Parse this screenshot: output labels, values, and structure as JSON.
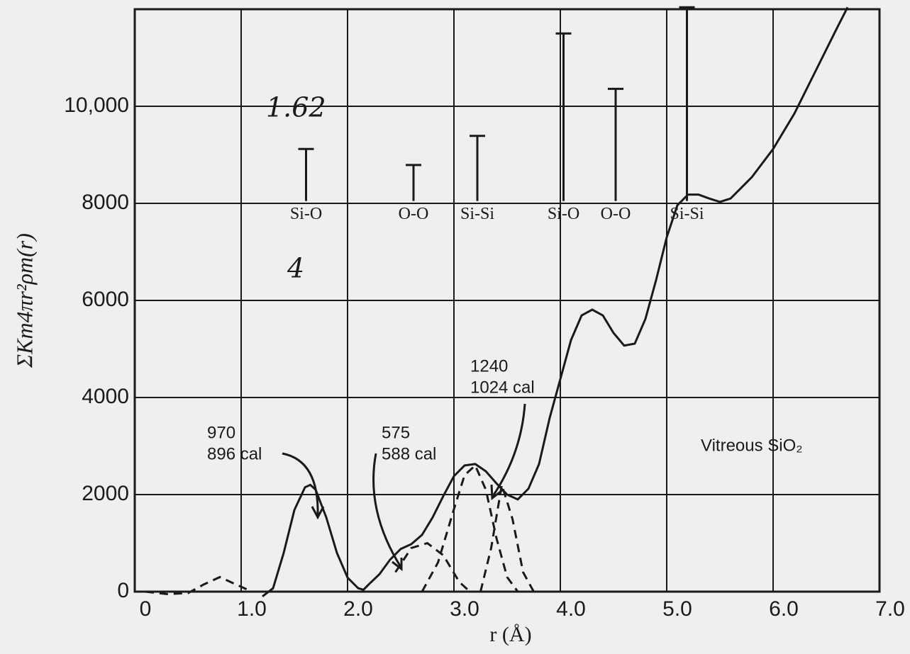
{
  "chart_data": {
    "type": "line",
    "xlabel": "r (Å)",
    "ylabel": "ΣKm4πr²ρm(r)",
    "xlim": [
      0,
      7
    ],
    "ylim": [
      0,
      12000
    ],
    "xticks": [
      0,
      {
        "value": 1,
        "label": "1.0"
      },
      {
        "value": 2,
        "label": "2.0"
      },
      {
        "value": 3,
        "label": "3.0"
      },
      {
        "value": 4,
        "label": "4.0"
      },
      {
        "value": 5,
        "label": "5.0"
      },
      {
        "value": 6,
        "label": "6.0"
      },
      {
        "value": 7,
        "label": "7.0"
      }
    ],
    "yticks": [
      0,
      2000,
      4000,
      6000,
      8000,
      {
        "value": 10000,
        "label": "10,000"
      }
    ],
    "grid": true,
    "series": [
      {
        "color": "#1a1a1a",
        "dashed": false,
        "x": [
          1.2,
          1.3,
          1.4,
          1.5,
          1.6,
          1.65,
          1.7,
          1.8,
          1.9,
          2.0,
          2.1,
          2.15,
          2.2,
          2.3,
          2.4,
          2.5,
          2.6,
          2.7,
          2.8,
          2.9,
          3.0,
          3.1,
          3.2,
          3.3,
          3.4,
          3.5,
          3.6,
          3.7,
          3.8,
          3.9,
          4.0,
          4.1,
          4.2,
          4.3,
          4.4,
          4.5,
          4.6,
          4.7,
          4.8,
          4.9,
          5.0,
          5.1,
          5.2,
          5.3,
          5.4,
          5.5,
          5.6,
          5.8,
          6.0,
          6.2,
          6.4,
          6.6,
          6.7
        ],
        "values": [
          -100,
          70,
          800,
          1680,
          2150,
          2200,
          2100,
          1530,
          800,
          290,
          70,
          40,
          150,
          360,
          660,
          880,
          980,
          1170,
          1530,
          1970,
          2380,
          2600,
          2630,
          2480,
          2230,
          2000,
          1900,
          2120,
          2630,
          3580,
          4380,
          5180,
          5690,
          5810,
          5690,
          5330,
          5070,
          5110,
          5620,
          6420,
          7300,
          7960,
          8180,
          8180,
          8100,
          8030,
          8100,
          8540,
          9120,
          9850,
          10730,
          11610,
          12040
        ]
      },
      {
        "color": "#1a1a1a",
        "dashed": true,
        "x": [
          0.1,
          0.3,
          0.5,
          0.65,
          0.8,
          0.95,
          1.1
        ],
        "values": [
          0,
          -50,
          -30,
          150,
          300,
          150,
          0
        ]
      },
      {
        "color": "#1a1a1a",
        "dashed": true,
        "x": [
          2.45,
          2.6,
          2.75,
          2.9,
          3.05,
          3.15
        ],
        "values": [
          400,
          900,
          1000,
          750,
          200,
          0
        ]
      },
      {
        "color": "#1a1a1a",
        "dashed": true,
        "x": [
          2.7,
          2.85,
          3.0,
          3.1,
          3.2,
          3.3,
          3.4,
          3.5,
          3.6
        ],
        "values": [
          0,
          600,
          1700,
          2400,
          2600,
          2100,
          1100,
          300,
          0
        ]
      },
      {
        "color": "#1a1a1a",
        "dashed": true,
        "x": [
          3.25,
          3.35,
          3.45,
          3.55,
          3.65,
          3.75
        ],
        "values": [
          0,
          900,
          2200,
          1500,
          400,
          0
        ]
      }
    ],
    "sticks": {
      "base": 8050,
      "x": [
        1.61,
        2.62,
        3.22,
        4.03,
        4.52,
        5.19
      ],
      "values": [
        9120,
        8790,
        9390,
        11500,
        10360,
        12040
      ],
      "labels": [
        "Si-O",
        "O-O",
        "Si-Si",
        "Si-O",
        "O-O",
        "Si-Si"
      ]
    },
    "annotations": [
      {
        "lines": [
          "970",
          "896 cal"
        ]
      },
      {
        "lines": [
          "575",
          "588 cal"
        ]
      },
      {
        "lines": [
          "1240",
          "1024 cal"
        ]
      },
      {
        "lines": [
          "Vitreous SiO₂"
        ]
      },
      {
        "lines": [
          "1.62"
        ]
      },
      {
        "lines": [
          "4"
        ]
      }
    ]
  }
}
